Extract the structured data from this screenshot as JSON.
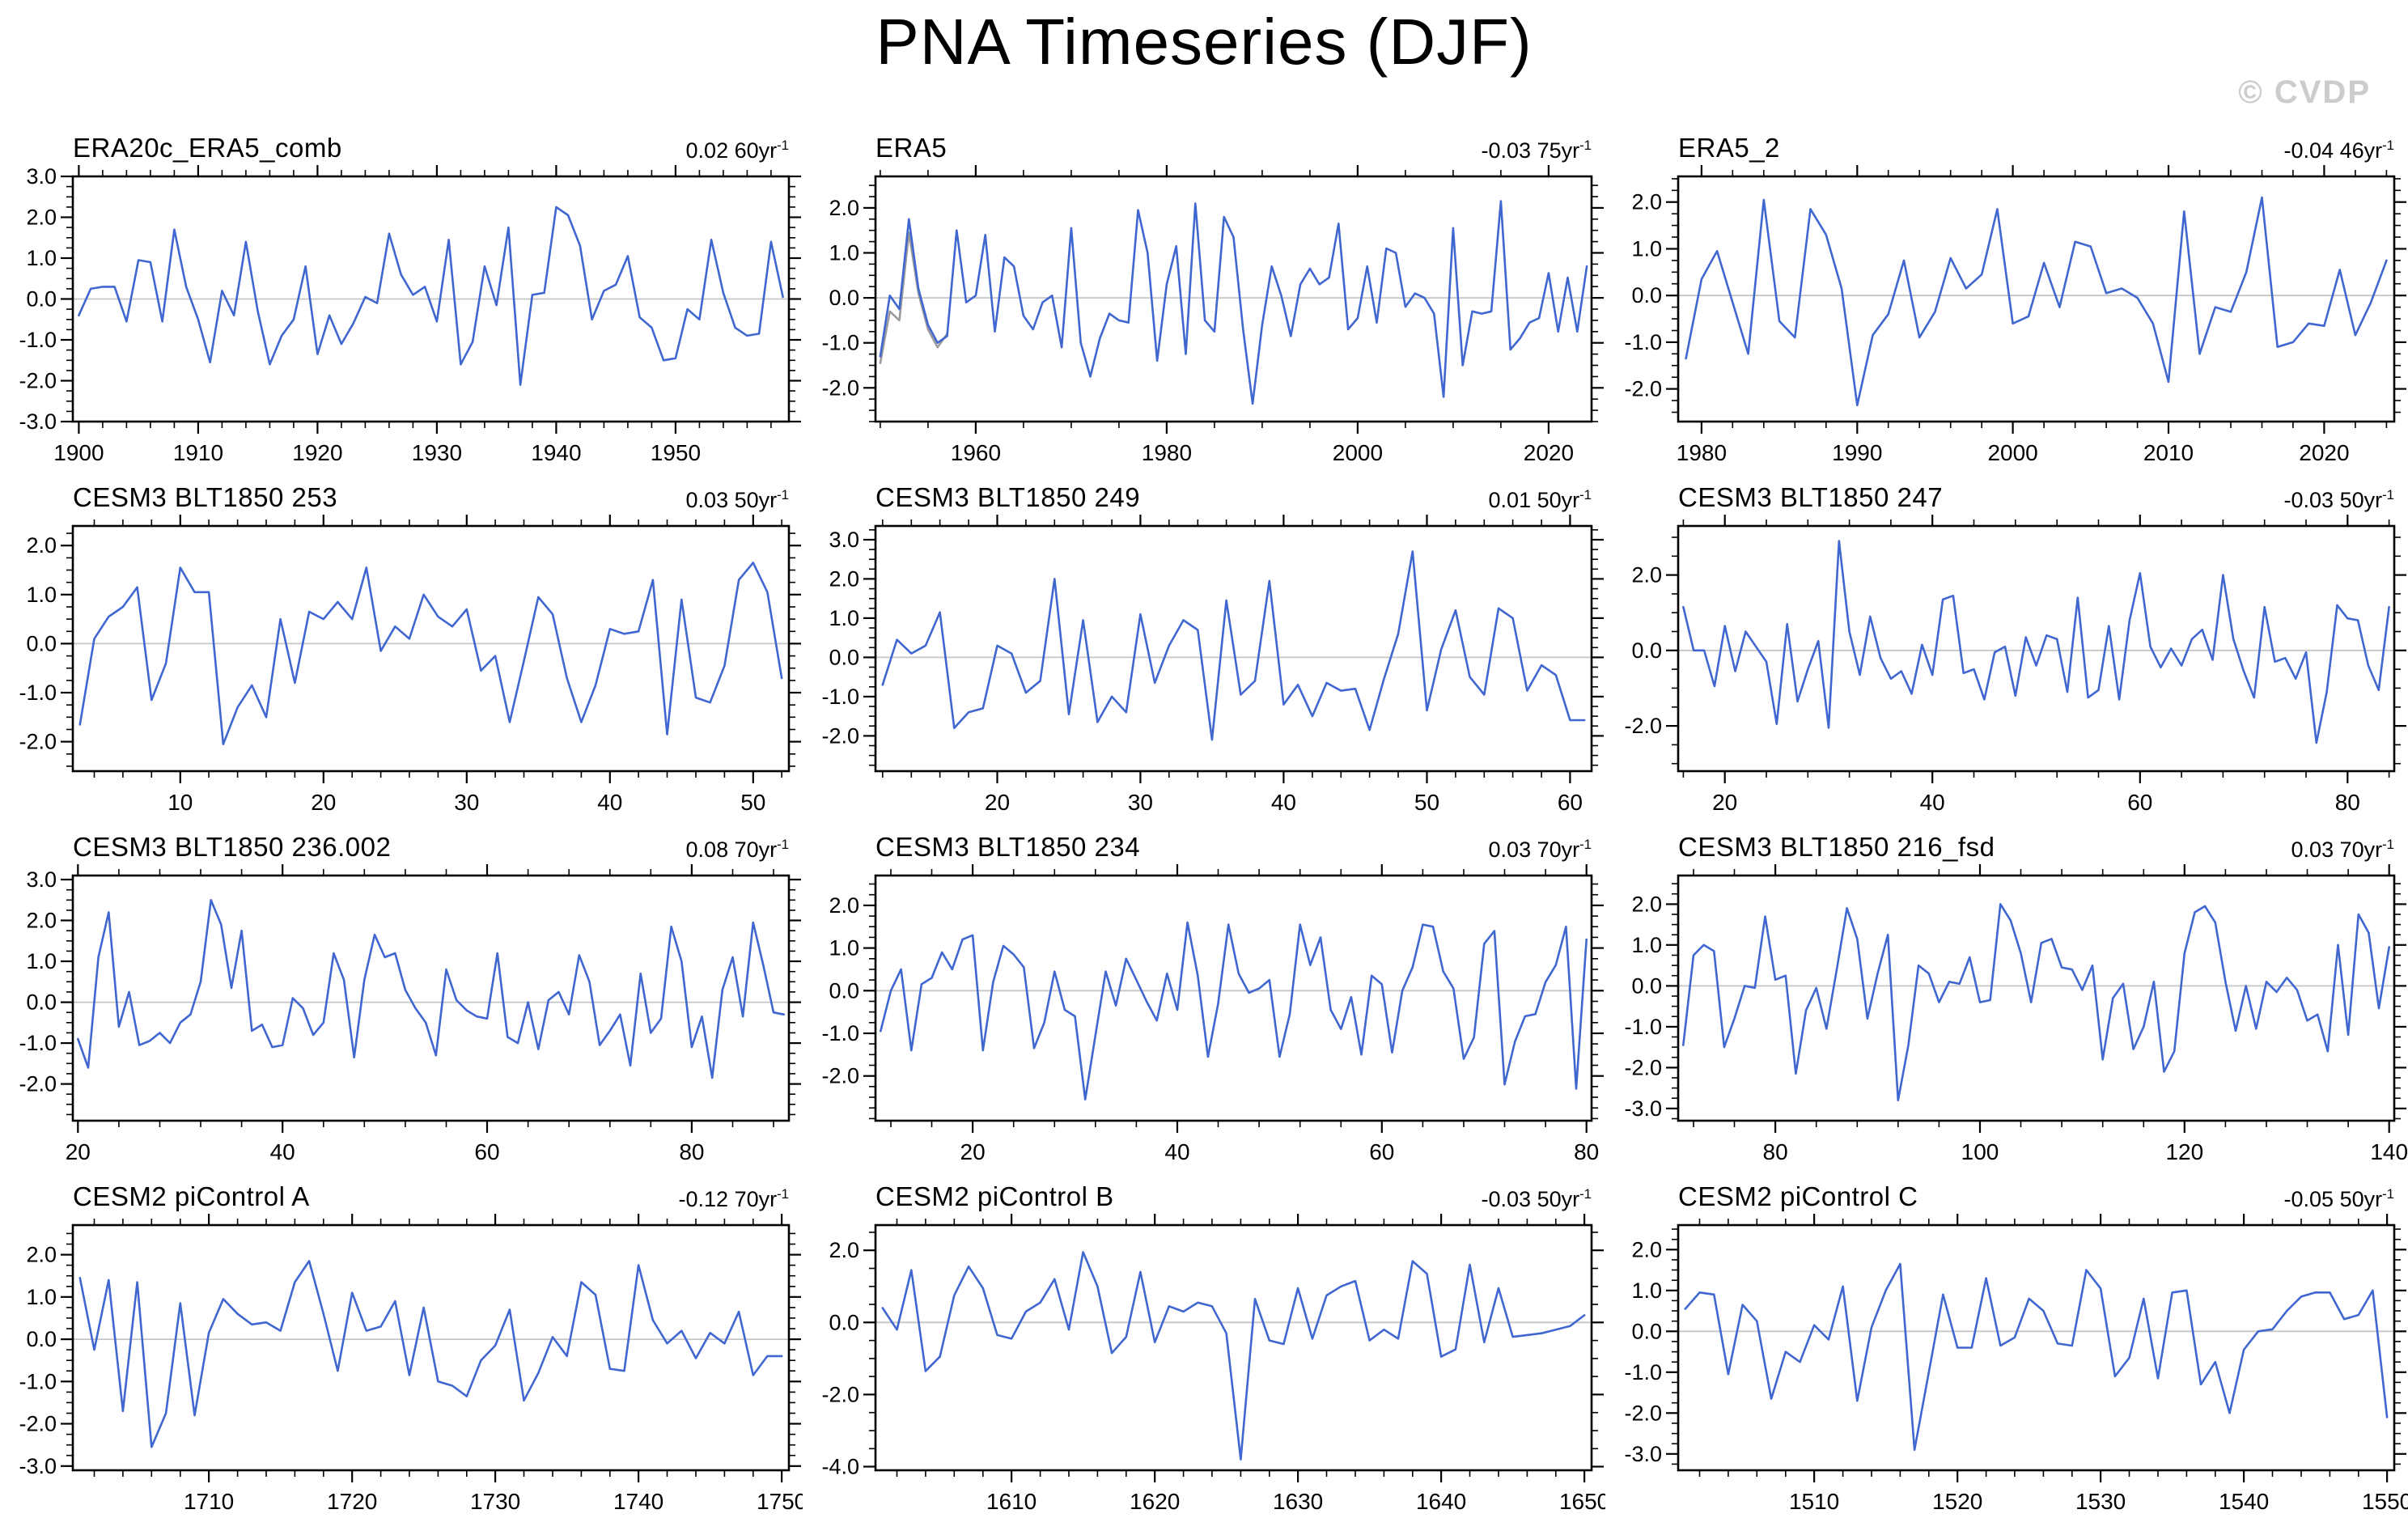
{
  "page": {
    "title": "PNA Timeseries (DJF)",
    "watermark": "© CVDP"
  },
  "colors": {
    "line": "#4066D0",
    "overlay": "#9b9b9b",
    "zero_line": "#c6c6c6",
    "axis": "#000000",
    "watermark": "#cccccc"
  },
  "chart_data": [
    {
      "type": "line",
      "title": "ERA20c_ERA5_comb",
      "trend": "0.02 60yr",
      "trend_exp": "-1",
      "x_start": 1900,
      "x_ticks": [
        1900,
        1910,
        1920,
        1930,
        1940,
        1950
      ],
      "x_minor_step": 2,
      "ylim": [
        -3.0,
        3.0
      ],
      "y_labels": [
        3,
        2,
        1,
        0,
        -1,
        -2,
        -3
      ],
      "y_minor_step": 0.25,
      "values": [
        -0.4,
        0.25,
        0.3,
        0.3,
        -0.55,
        0.95,
        0.9,
        -0.55,
        1.7,
        0.3,
        -0.5,
        -1.55,
        0.2,
        -0.4,
        1.4,
        -0.3,
        -1.6,
        -0.9,
        -0.5,
        0.8,
        -1.35,
        -0.4,
        -1.1,
        -0.6,
        0.05,
        -0.1,
        1.6,
        0.6,
        0.1,
        0.3,
        -0.55,
        1.45,
        -1.6,
        -1.05,
        0.8,
        -0.15,
        1.75,
        -2.1,
        0.1,
        0.15,
        2.25,
        2.05,
        1.3,
        -0.5,
        0.2,
        0.35,
        1.05,
        -0.45,
        -0.7,
        -1.5,
        -1.45,
        -0.25,
        -0.5,
        1.45,
        0.15,
        -0.7,
        -0.9,
        -0.85,
        1.4,
        0.05
      ]
    },
    {
      "type": "line",
      "title": "ERA5",
      "trend": "-0.03 75yr",
      "trend_exp": "-1",
      "x_start": 1950,
      "x_ticks": [
        1960,
        1980,
        2000,
        2020
      ],
      "x_minor_step": 5,
      "ylim": [
        -2.75,
        2.7
      ],
      "y_labels": [
        2,
        1,
        0,
        -1,
        -2
      ],
      "y_minor_step": 0.25,
      "values": [
        -1.3,
        0.05,
        -0.25,
        1.75,
        0.2,
        -0.6,
        -1.0,
        -0.85,
        1.5,
        -0.1,
        0.05,
        1.4,
        -0.75,
        0.9,
        0.7,
        -0.4,
        -0.7,
        -0.1,
        0.05,
        -1.1,
        1.55,
        -1.0,
        -1.75,
        -0.9,
        -0.35,
        -0.5,
        -0.55,
        1.95,
        1.0,
        -1.4,
        0.3,
        1.15,
        -1.25,
        2.1,
        -0.5,
        -0.75,
        1.8,
        1.35,
        -0.7,
        -2.35,
        -0.6,
        0.7,
        0.05,
        -0.85,
        0.3,
        0.65,
        0.3,
        0.45,
        1.65,
        -0.7,
        -0.45,
        0.7,
        -0.55,
        1.1,
        1.0,
        -0.2,
        0.1,
        0.0,
        -0.35,
        -2.2,
        1.55,
        -1.5,
        -0.3,
        -0.35,
        -0.3,
        2.15,
        -1.15,
        -0.9,
        -0.55,
        -0.45,
        0.55,
        -0.75,
        0.45,
        -0.75,
        0.7
      ],
      "overlay": {
        "x_start": 1950,
        "values": [
          -1.45,
          -0.3,
          -0.5,
          1.45,
          0.1,
          -0.7,
          -1.1,
          -0.8
        ]
      }
    },
    {
      "type": "line",
      "title": "ERA5_2",
      "trend": "-0.04 46yr",
      "trend_exp": "-1",
      "x_start": 1979,
      "x_ticks": [
        1980,
        1990,
        2000,
        2010,
        2020
      ],
      "x_minor_step": 2,
      "ylim": [
        -2.7,
        2.55
      ],
      "y_labels": [
        2,
        1,
        0,
        -1,
        -2
      ],
      "y_minor_step": 0.25,
      "values": [
        -1.35,
        0.35,
        0.95,
        -0.15,
        -1.25,
        2.05,
        -0.55,
        -0.9,
        1.85,
        1.3,
        0.15,
        -2.35,
        -0.85,
        -0.4,
        0.75,
        -0.9,
        -0.35,
        0.8,
        0.15,
        0.45,
        1.85,
        -0.6,
        -0.45,
        0.7,
        -0.25,
        1.15,
        1.05,
        0.05,
        0.15,
        -0.05,
        -0.6,
        -1.85,
        1.8,
        -1.25,
        -0.25,
        -0.35,
        0.5,
        2.1,
        -1.1,
        -1.0,
        -0.6,
        -0.65,
        0.55,
        -0.85,
        -0.15,
        0.75
      ]
    },
    {
      "type": "line",
      "title": "CESM3 BLT1850 253",
      "trend": "0.03 50yr",
      "trend_exp": "-1",
      "x_start": 3,
      "x_ticks": [
        10,
        20,
        30,
        40,
        50
      ],
      "x_minor_step": 2,
      "ylim": [
        -2.6,
        2.4
      ],
      "y_labels": [
        2,
        1,
        0,
        -1,
        -2
      ],
      "y_minor_step": 0.25,
      "values": [
        -1.65,
        0.1,
        0.55,
        0.75,
        1.15,
        -1.15,
        -0.4,
        1.55,
        1.05,
        1.05,
        -2.05,
        -1.3,
        -0.85,
        -1.5,
        0.5,
        -0.8,
        0.65,
        0.5,
        0.85,
        0.5,
        1.55,
        -0.15,
        0.35,
        0.1,
        1.0,
        0.55,
        0.35,
        0.7,
        -0.55,
        -0.25,
        -1.6,
        -0.35,
        0.95,
        0.6,
        -0.7,
        -1.6,
        -0.85,
        0.3,
        0.2,
        0.25,
        1.3,
        -1.85,
        0.9,
        -1.1,
        -1.2,
        -0.45,
        1.3,
        1.65,
        1.05,
        -0.7
      ]
    },
    {
      "type": "line",
      "title": "CESM3 BLT1850 249",
      "trend": "0.01 50yr",
      "trend_exp": "-1",
      "x_start": 12,
      "x_ticks": [
        20,
        30,
        40,
        50,
        60
      ],
      "x_minor_step": 2,
      "ylim": [
        -2.9,
        3.35
      ],
      "y_labels": [
        3,
        2,
        1,
        0,
        -1,
        -2
      ],
      "y_minor_step": 0.25,
      "values": [
        -0.7,
        0.45,
        0.1,
        0.3,
        1.15,
        -1.8,
        -1.4,
        -1.3,
        0.3,
        0.1,
        -0.9,
        -0.6,
        2.0,
        -1.45,
        0.95,
        -1.65,
        -1.0,
        -1.4,
        1.1,
        -0.65,
        0.3,
        0.95,
        0.7,
        -2.1,
        1.45,
        -0.95,
        -0.6,
        1.95,
        -1.2,
        -0.7,
        -1.5,
        -0.65,
        -0.85,
        -0.8,
        -1.85,
        -0.55,
        0.6,
        2.7,
        -1.35,
        0.2,
        1.2,
        -0.5,
        -0.95,
        1.25,
        1.0,
        -0.85,
        -0.2,
        -0.45,
        -1.6,
        -1.6
      ]
    },
    {
      "type": "line",
      "title": "CESM3 BLT1850 247",
      "trend": "-0.03 50yr",
      "trend_exp": "-1",
      "x_start": 16,
      "x_ticks": [
        20,
        40,
        60,
        80
      ],
      "x_minor_step": 4,
      "ylim": [
        -3.2,
        3.3
      ],
      "y_labels": [
        2,
        0,
        -2
      ],
      "y_minor_step": 0.5,
      "values": [
        1.15,
        0.0,
        0.0,
        -0.95,
        0.65,
        -0.55,
        0.5,
        0.1,
        -0.3,
        -1.95,
        0.7,
        -1.35,
        -0.5,
        0.25,
        -2.05,
        2.9,
        0.5,
        -0.65,
        0.9,
        -0.2,
        -0.75,
        -0.55,
        -1.15,
        0.15,
        -0.65,
        1.35,
        1.45,
        -0.6,
        -0.5,
        -1.3,
        -0.05,
        0.1,
        -1.2,
        0.35,
        -0.4,
        0.4,
        0.3,
        -1.1,
        1.4,
        -1.25,
        -1.05,
        0.65,
        -1.3,
        0.8,
        2.05,
        0.1,
        -0.45,
        0.05,
        -0.4,
        0.3,
        0.55,
        -0.25,
        2.0,
        0.3,
        -0.55,
        -1.25,
        1.15,
        -0.3,
        -0.2,
        -0.75,
        -0.05,
        -2.45,
        -1.1,
        1.2,
        0.85,
        0.8,
        -0.4,
        -1.05,
        1.15
      ]
    },
    {
      "type": "line",
      "title": "CESM3 BLT1850 236.002",
      "trend": "0.08 70yr",
      "trend_exp": "-1",
      "x_start": 20,
      "x_ticks": [
        20,
        40,
        60,
        80
      ],
      "x_minor_step": 4,
      "ylim": [
        -2.9,
        3.1
      ],
      "y_labels": [
        3,
        2,
        1,
        0,
        -1,
        -2
      ],
      "y_minor_step": 0.25,
      "values": [
        -0.9,
        -1.6,
        1.1,
        2.2,
        -0.6,
        0.25,
        -1.05,
        -0.95,
        -0.75,
        -1.0,
        -0.5,
        -0.3,
        0.5,
        2.5,
        1.9,
        0.35,
        1.75,
        -0.7,
        -0.55,
        -1.1,
        -1.05,
        0.1,
        -0.15,
        -0.8,
        -0.5,
        1.2,
        0.55,
        -1.35,
        0.55,
        1.65,
        1.1,
        1.2,
        0.3,
        -0.15,
        -0.5,
        -1.3,
        0.8,
        0.05,
        -0.2,
        -0.35,
        -0.4,
        1.2,
        -0.85,
        -1.0,
        0.0,
        -1.15,
        0.05,
        0.25,
        -0.3,
        1.15,
        0.5,
        -1.05,
        -0.7,
        -0.3,
        -1.55,
        0.7,
        -0.75,
        -0.4,
        1.85,
        1.0,
        -1.1,
        -0.35,
        -1.85,
        0.3,
        1.1,
        -0.35,
        1.95,
        0.9,
        -0.25,
        -0.3
      ]
    },
    {
      "type": "line",
      "title": "CESM3 BLT1850 234",
      "trend": "0.03 70yr",
      "trend_exp": "-1",
      "x_start": 11,
      "x_ticks": [
        20,
        40,
        60,
        80
      ],
      "x_minor_step": 4,
      "ylim": [
        -3.05,
        2.7
      ],
      "y_labels": [
        2,
        1,
        0,
        -1,
        -2
      ],
      "y_minor_step": 0.25,
      "values": [
        -0.95,
        0.0,
        0.5,
        -1.4,
        0.15,
        0.3,
        0.9,
        0.5,
        1.2,
        1.3,
        -1.4,
        0.2,
        1.05,
        0.85,
        0.55,
        -1.35,
        -0.75,
        0.45,
        -0.45,
        -0.6,
        -2.55,
        -1.05,
        0.45,
        -0.35,
        0.75,
        0.25,
        -0.25,
        -0.7,
        0.4,
        -0.45,
        1.6,
        0.35,
        -1.55,
        -0.3,
        1.55,
        0.4,
        -0.05,
        0.05,
        0.25,
        -1.55,
        -0.55,
        1.55,
        0.6,
        1.25,
        -0.45,
        -0.9,
        -0.15,
        -1.5,
        0.35,
        0.15,
        -1.45,
        0.0,
        0.55,
        1.55,
        1.5,
        0.45,
        0.05,
        -1.6,
        -1.1,
        1.1,
        1.4,
        -2.2,
        -1.2,
        -0.6,
        -0.55,
        0.2,
        0.6,
        1.5,
        -2.3,
        1.2
      ]
    },
    {
      "type": "line",
      "title": "CESM3 BLT1850 216_fsd",
      "trend": "0.03 70yr",
      "trend_exp": "-1",
      "x_start": 71,
      "x_ticks": [
        80,
        100,
        120,
        140
      ],
      "x_minor_step": 4,
      "ylim": [
        -3.3,
        2.7
      ],
      "y_labels": [
        2,
        1,
        0,
        -1,
        -2,
        -3
      ],
      "y_minor_step": 0.25,
      "values": [
        -1.45,
        0.75,
        1.0,
        0.85,
        -1.5,
        -0.8,
        0.0,
        -0.05,
        1.7,
        0.15,
        0.25,
        -2.15,
        -0.6,
        -0.05,
        -1.05,
        0.4,
        1.9,
        1.15,
        -0.8,
        0.3,
        1.25,
        -2.8,
        -1.45,
        0.5,
        0.3,
        -0.4,
        0.1,
        0.05,
        0.7,
        -0.4,
        -0.35,
        2.0,
        1.6,
        0.8,
        -0.4,
        1.05,
        1.15,
        0.45,
        0.4,
        -0.1,
        0.5,
        -1.8,
        -0.3,
        0.05,
        -1.55,
        -1.0,
        0.1,
        -2.1,
        -1.6,
        0.8,
        1.8,
        1.95,
        1.55,
        0.1,
        -1.1,
        0.0,
        -1.05,
        0.1,
        -0.15,
        0.2,
        -0.1,
        -0.85,
        -0.7,
        -1.6,
        1.0,
        -1.2,
        1.75,
        1.3,
        -0.55,
        0.95
      ]
    },
    {
      "type": "line",
      "title": "CESM2 piControl A",
      "trend": "-0.12 70yr",
      "trend_exp": "-1",
      "x_start": 1701,
      "x_ticks": [
        1710,
        1720,
        1730,
        1740,
        1750
      ],
      "x_minor_step": 2,
      "ylim": [
        -3.1,
        2.7
      ],
      "y_labels": [
        2,
        1,
        0,
        -1,
        -2,
        -3
      ],
      "y_minor_step": 0.25,
      "values": [
        1.45,
        -0.25,
        1.4,
        -1.7,
        1.35,
        -2.55,
        -1.75,
        0.85,
        -1.8,
        0.15,
        0.95,
        0.6,
        0.35,
        0.4,
        0.2,
        1.35,
        1.85,
        0.6,
        -0.75,
        1.1,
        0.2,
        0.3,
        0.9,
        -0.85,
        0.75,
        -1.0,
        -1.1,
        -1.35,
        -0.5,
        -0.15,
        0.7,
        -1.45,
        -0.8,
        0.05,
        -0.4,
        1.35,
        1.05,
        -0.7,
        -0.75,
        1.75,
        0.45,
        -0.1,
        0.2,
        -0.45,
        0.15,
        -0.1,
        0.65,
        -0.85,
        -0.4,
        -0.4
      ]
    },
    {
      "type": "line",
      "title": "CESM2 piControl B",
      "trend": "-0.03 50yr",
      "trend_exp": "-1",
      "x_start": 1601,
      "x_ticks": [
        1610,
        1620,
        1630,
        1640,
        1650
      ],
      "x_minor_step": 2,
      "ylim": [
        -4.1,
        2.7
      ],
      "y_labels": [
        2,
        0,
        -2,
        -4
      ],
      "y_minor_step": 0.5,
      "values": [
        0.4,
        -0.2,
        1.45,
        -1.35,
        -0.95,
        0.75,
        1.55,
        0.95,
        -0.35,
        -0.45,
        0.3,
        0.55,
        1.2,
        -0.2,
        1.95,
        1.0,
        -0.85,
        -0.4,
        1.4,
        -0.55,
        0.45,
        0.3,
        0.55,
        0.45,
        -0.3,
        -3.8,
        0.65,
        -0.5,
        -0.6,
        0.95,
        -0.45,
        0.75,
        1.0,
        1.15,
        -0.5,
        -0.2,
        -0.45,
        1.7,
        1.35,
        -0.95,
        -0.75,
        1.6,
        -0.55,
        0.95,
        -0.4,
        -0.35,
        -0.3,
        -0.2,
        -0.1,
        0.2
      ]
    },
    {
      "type": "line",
      "title": "CESM2 piControl C",
      "trend": "-0.05 50yr",
      "trend_exp": "-1",
      "x_start": 1501,
      "x_ticks": [
        1510,
        1520,
        1530,
        1540,
        1550
      ],
      "x_minor_step": 2,
      "ylim": [
        -3.4,
        2.6
      ],
      "y_labels": [
        2,
        1,
        0,
        -1,
        -2,
        -3
      ],
      "y_minor_step": 0.25,
      "values": [
        0.55,
        0.95,
        0.9,
        -1.05,
        0.65,
        0.25,
        -1.65,
        -0.5,
        -0.75,
        0.15,
        -0.2,
        1.1,
        -1.7,
        0.1,
        1.0,
        1.65,
        -2.9,
        -1.0,
        0.9,
        -0.4,
        -0.4,
        1.3,
        -0.35,
        -0.15,
        0.8,
        0.5,
        -0.3,
        -0.35,
        1.5,
        1.05,
        -1.1,
        -0.65,
        0.8,
        -1.15,
        0.95,
        1.0,
        -1.3,
        -0.75,
        -2.0,
        -0.45,
        0.0,
        0.05,
        0.5,
        0.85,
        0.95,
        0.95,
        0.3,
        0.4,
        1.0,
        -2.1
      ]
    }
  ],
  "layout": {
    "grid_rows": 4,
    "grid_cols": 3,
    "row_tops": [
      160,
      592,
      1024,
      1456
    ],
    "col_lefts": [
      0,
      992,
      1984
    ]
  }
}
